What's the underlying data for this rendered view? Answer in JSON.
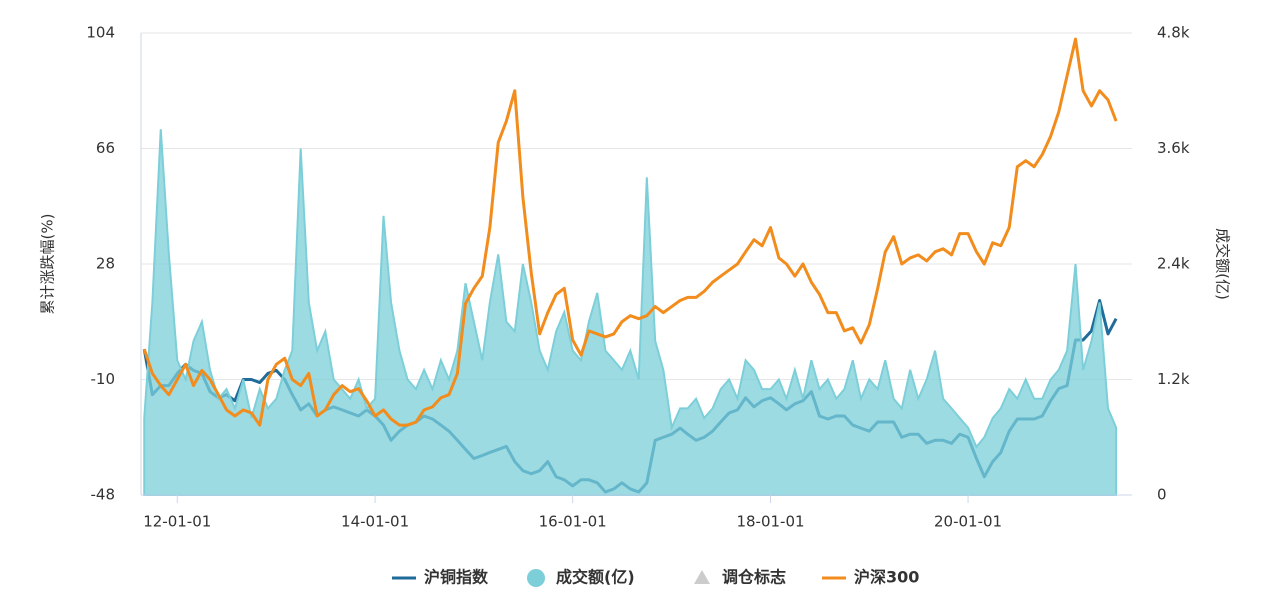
{
  "chart_data": {
    "type": "line",
    "x": [
      "11-09-01",
      "11-10-01",
      "11-11-01",
      "11-12-01",
      "12-01-01",
      "12-02-01",
      "12-03-01",
      "12-04-01",
      "12-05-01",
      "12-06-01",
      "12-07-01",
      "12-08-01",
      "12-09-01",
      "12-10-01",
      "12-11-01",
      "12-12-01",
      "13-01-01",
      "13-02-01",
      "13-03-01",
      "13-04-01",
      "13-05-01",
      "13-06-01",
      "13-07-01",
      "13-08-01",
      "13-09-01",
      "13-10-01",
      "13-11-01",
      "13-12-01",
      "14-01-01",
      "14-02-01",
      "14-03-01",
      "14-04-01",
      "14-05-01",
      "14-06-01",
      "14-07-01",
      "14-08-01",
      "14-09-01",
      "14-10-01",
      "14-11-01",
      "14-12-01",
      "15-01-01",
      "15-02-01",
      "15-03-01",
      "15-04-01",
      "15-05-01",
      "15-06-01",
      "15-07-01",
      "15-08-01",
      "15-09-01",
      "15-10-01",
      "15-11-01",
      "15-12-01",
      "16-01-01",
      "16-02-01",
      "16-03-01",
      "16-04-01",
      "16-05-01",
      "16-06-01",
      "16-07-01",
      "16-08-01",
      "16-09-01",
      "16-10-01",
      "16-11-01",
      "16-12-01",
      "17-01-01",
      "17-02-01",
      "17-03-01",
      "17-04-01",
      "17-05-01",
      "17-06-01",
      "17-07-01",
      "17-08-01",
      "17-09-01",
      "17-10-01",
      "17-11-01",
      "17-12-01",
      "18-01-01",
      "18-02-01",
      "18-03-01",
      "18-04-01",
      "18-05-01",
      "18-06-01",
      "18-07-01",
      "18-08-01",
      "18-09-01",
      "18-10-01",
      "18-11-01",
      "18-12-01",
      "19-01-01",
      "19-02-01",
      "19-03-01",
      "19-04-01",
      "19-05-01",
      "19-06-01",
      "19-07-01",
      "19-08-01",
      "19-09-01",
      "19-10-01",
      "19-11-01",
      "19-12-01",
      "20-01-01",
      "20-02-01",
      "20-03-01",
      "20-04-01",
      "20-05-01",
      "20-06-01",
      "20-07-01",
      "20-08-01",
      "20-09-01",
      "20-10-01",
      "20-11-01",
      "20-12-01",
      "21-01-01",
      "21-02-01",
      "21-03-01",
      "21-04-01",
      "21-05-01",
      "21-06-01",
      "21-07-01"
    ],
    "xlim": [
      "11-08-20",
      "21-08-25"
    ],
    "xticks": [
      "12-01-01",
      "14-01-01",
      "16-01-01",
      "18-01-01",
      "20-01-01"
    ],
    "ylim": [
      -48,
      104
    ],
    "yticks": [
      -48,
      -10,
      28,
      66,
      104
    ],
    "y2lim": [
      0,
      4800
    ],
    "y2ticks": [
      0,
      {
        "value": 1200,
        "label": "1.2k"
      },
      {
        "value": 2400,
        "label": "2.4k"
      },
      {
        "value": 3600,
        "label": "3.6k"
      },
      {
        "value": 4800,
        "label": "4.8k"
      }
    ],
    "ylabel": "累计涨跌幅(%)",
    "y2label": "成交额(亿)",
    "grid": true,
    "legend": "bottom",
    "inactive_legend": [
      {
        "name": "调仓标志",
        "color": "#cccccc"
      }
    ],
    "series": [
      {
        "name": "沪铜指数",
        "color": "#1f6b9a",
        "kind": "line",
        "values": [
          0,
          -15,
          -12,
          -12,
          -8,
          -5,
          -7,
          -8,
          -14,
          -16,
          -15,
          -17,
          -10,
          -10,
          -11,
          -8,
          -7,
          -10,
          -15,
          -20,
          -18,
          -22,
          -20,
          -19,
          -20,
          -21,
          -22,
          -20,
          -22,
          -25,
          -30,
          -27,
          -25,
          -24,
          -22,
          -23,
          -25,
          -27,
          -30,
          -33,
          -36,
          -35,
          -34,
          -33,
          -32,
          -37,
          -40,
          -41,
          -40,
          -37,
          -42,
          -43,
          -45,
          -43,
          -43,
          -44,
          -47,
          -46,
          -44,
          -46,
          -47,
          -44,
          -30,
          -29,
          -28,
          -26,
          -28,
          -30,
          -29,
          -27,
          -24,
          -21,
          -20,
          -16,
          -19,
          -17,
          -16,
          -18,
          -20,
          -18,
          -17,
          -14,
          -22,
          -23,
          -22,
          -22,
          -25,
          -26,
          -27,
          -24,
          -24,
          -24,
          -29,
          -28,
          -28,
          -31,
          -30,
          -30,
          -31,
          -28,
          -29,
          -36,
          -42,
          -37,
          -34,
          -27,
          -23,
          -23,
          -23,
          -22,
          -17,
          -13,
          -12,
          3,
          3,
          6,
          16,
          5,
          10
        ]
      },
      {
        "name": "成交额(亿)",
        "color": "#7ccfd9",
        "kind": "area",
        "axis": "y2",
        "values": [
          800,
          2000,
          3800,
          2500,
          1400,
          1200,
          1600,
          1800,
          1300,
          1000,
          1100,
          900,
          1200,
          800,
          1100,
          900,
          1000,
          1300,
          1500,
          3600,
          2000,
          1500,
          1700,
          1200,
          1100,
          1000,
          1200,
          900,
          1000,
          2900,
          2000,
          1500,
          1200,
          1100,
          1300,
          1100,
          1400,
          1200,
          1500,
          2200,
          1800,
          1400,
          2000,
          2500,
          1800,
          1700,
          2400,
          2000,
          1500,
          1300,
          1700,
          1900,
          1500,
          1400,
          1800,
          2100,
          1500,
          1400,
          1300,
          1500,
          1200,
          3300,
          1600,
          1300,
          700,
          900,
          900,
          1000,
          800,
          900,
          1100,
          1200,
          1000,
          1400,
          1300,
          1100,
          1100,
          1200,
          1000,
          1300,
          1000,
          1400,
          1100,
          1200,
          1000,
          1100,
          1400,
          1000,
          1200,
          1100,
          1400,
          1000,
          900,
          1300,
          1000,
          1200,
          1500,
          1000,
          900,
          800,
          700,
          500,
          600,
          800,
          900,
          1100,
          1000,
          1200,
          1000,
          1000,
          1200,
          1300,
          1500,
          2400,
          1300,
          1600,
          2000,
          900,
          700
        ]
      },
      {
        "name": "沪深300",
        "color": "#f28c1c",
        "kind": "line",
        "values": [
          0,
          -8,
          -12,
          -15,
          -10,
          -5,
          -12,
          -7,
          -10,
          -15,
          -20,
          -22,
          -20,
          -21,
          -25,
          -10,
          -5,
          -3,
          -10,
          -12,
          -8,
          -22,
          -20,
          -15,
          -12,
          -14,
          -13,
          -17,
          -22,
          -20,
          -23,
          -25,
          -25,
          -24,
          -20,
          -19,
          -16,
          -15,
          -8,
          15,
          20,
          24,
          40,
          68,
          75,
          85,
          50,
          25,
          5,
          12,
          18,
          20,
          3,
          -2,
          6,
          5,
          4,
          5,
          9,
          11,
          10,
          11,
          14,
          12,
          14,
          16,
          17,
          17,
          19,
          22,
          24,
          26,
          28,
          32,
          36,
          34,
          40,
          30,
          28,
          24,
          28,
          22,
          18,
          12,
          12,
          6,
          7,
          2,
          8,
          20,
          32,
          37,
          28,
          30,
          31,
          29,
          32,
          33,
          31,
          38,
          38,
          32,
          28,
          35,
          34,
          40,
          60,
          62,
          60,
          64,
          70,
          78,
          90,
          102,
          85,
          80,
          85,
          82,
          75
        ]
      }
    ]
  }
}
